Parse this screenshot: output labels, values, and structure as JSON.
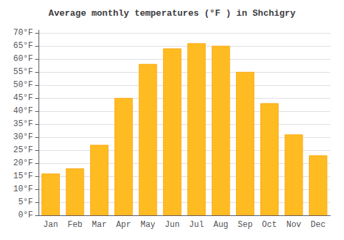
{
  "chart_data": {
    "type": "bar",
    "title": "Average monthly temperatures (°F ) in Shchigry",
    "categories": [
      "Jan",
      "Feb",
      "Mar",
      "Apr",
      "May",
      "Jun",
      "Jul",
      "Aug",
      "Sep",
      "Oct",
      "Nov",
      "Dec"
    ],
    "values": [
      16,
      18,
      27,
      45,
      58,
      64,
      66,
      65,
      55,
      43,
      31,
      23
    ],
    "color": "#FFBB22",
    "ylim": [
      0,
      71
    ],
    "yticks": [
      {
        "value": 0,
        "label": "0°F"
      },
      {
        "value": 5,
        "label": "5°F"
      },
      {
        "value": 10,
        "label": "10°F"
      },
      {
        "value": 15,
        "label": "15°F"
      },
      {
        "value": 20,
        "label": "20°F"
      },
      {
        "value": 25,
        "label": "25°F"
      },
      {
        "value": 30,
        "label": "30°F"
      },
      {
        "value": 35,
        "label": "35°F"
      },
      {
        "value": 40,
        "label": "40°F"
      },
      {
        "value": 45,
        "label": "45°F"
      },
      {
        "value": 50,
        "label": "50°F"
      },
      {
        "value": 55,
        "label": "55°F"
      },
      {
        "value": 60,
        "label": "60°F"
      },
      {
        "value": 65,
        "label": "65°F"
      },
      {
        "value": 70,
        "label": "70°F"
      }
    ],
    "grid": true
  }
}
